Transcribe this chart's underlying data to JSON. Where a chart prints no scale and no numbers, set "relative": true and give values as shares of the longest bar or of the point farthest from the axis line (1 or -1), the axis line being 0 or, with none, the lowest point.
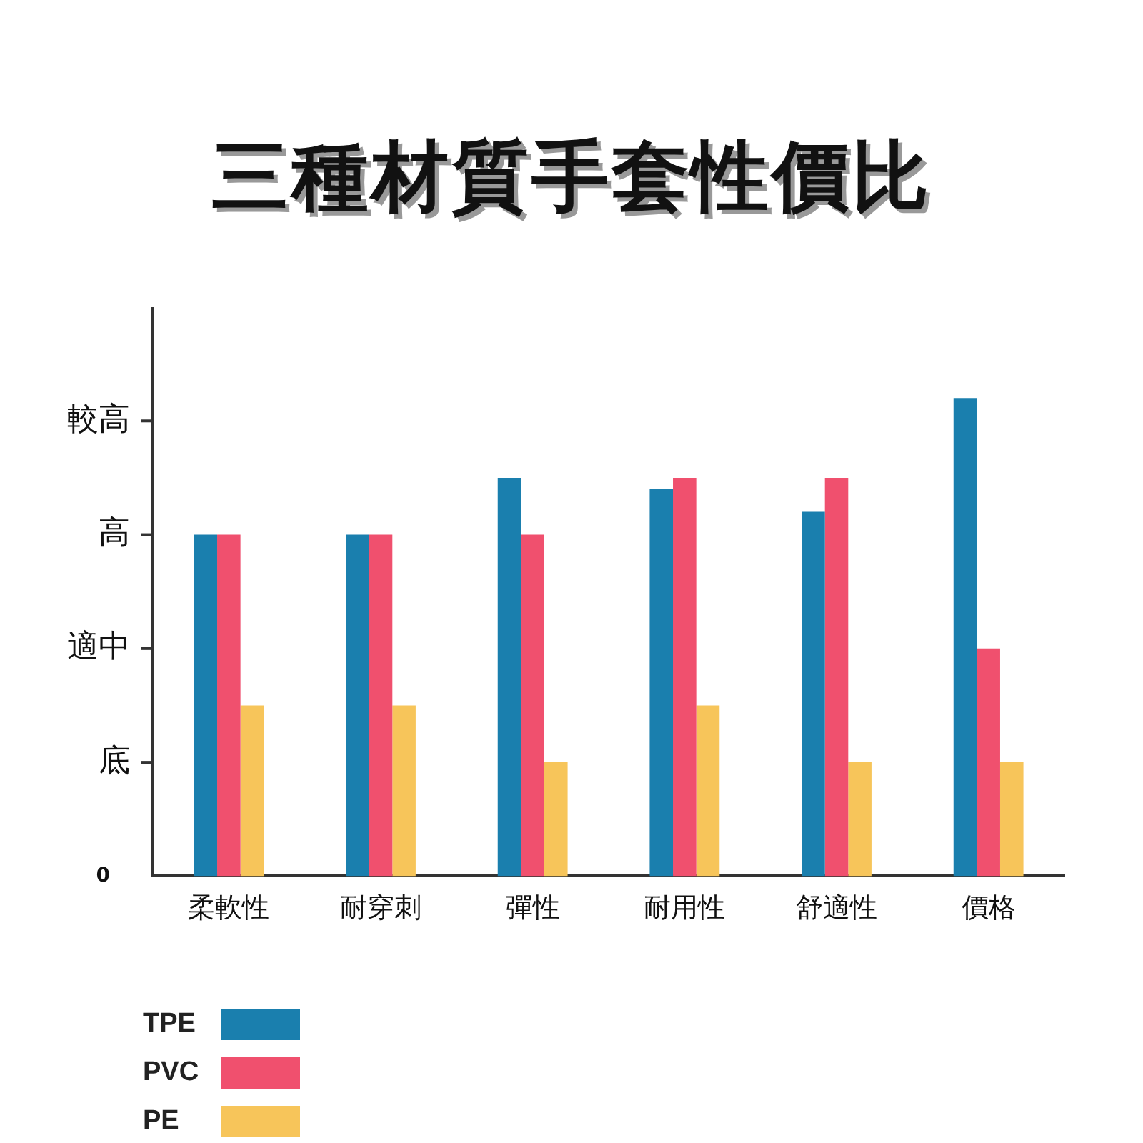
{
  "chart_data": {
    "type": "bar",
    "title": "三種材質手套性價比",
    "categories": [
      "柔軟性",
      "耐穿刺",
      "彈性",
      "耐用性",
      "舒適性",
      "價格"
    ],
    "series": [
      {
        "name": "TPE",
        "color": "#1a7fae",
        "values": [
          0.714,
          0.714,
          0.833,
          0.81,
          0.762,
          1
        ]
      },
      {
        "name": "PVC",
        "color": "#f0506e",
        "values": [
          0.714,
          0.714,
          0.714,
          0.833,
          0.833,
          0.476
        ]
      },
      {
        "name": "PE",
        "color": "#f7c55a",
        "values": [
          0.357,
          0.357,
          0.238,
          0.357,
          0.238,
          0.238
        ]
      }
    ],
    "relative": true,
    "annotations": [
      "0",
      "底",
      "適中",
      "高",
      "較高"
    ],
    "grid": false,
    "legend": "bottom left"
  }
}
